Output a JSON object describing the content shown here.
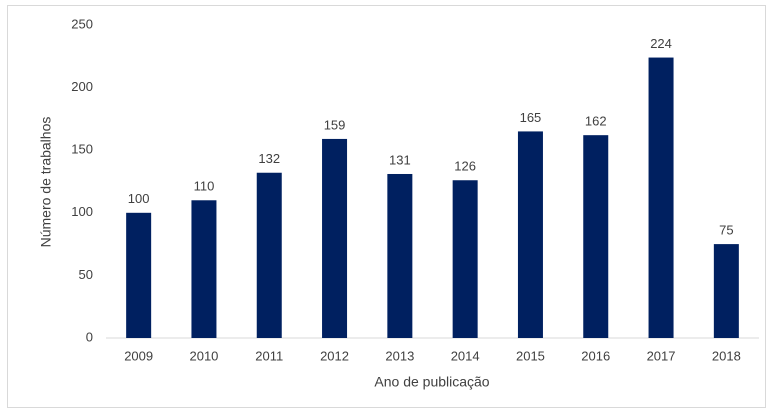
{
  "chart_data": {
    "type": "bar",
    "x_label": "Ano de publicação",
    "y_label": "Número de trabalhos",
    "categories": [
      "2009",
      "2010",
      "2011",
      "2012",
      "2013",
      "2014",
      "2015",
      "2016",
      "2017",
      "2018"
    ],
    "values": [
      100,
      110,
      132,
      159,
      131,
      126,
      165,
      162,
      224,
      75
    ],
    "color": "#002060",
    "ylim": [
      0,
      250
    ],
    "yticks": [
      0,
      50,
      100,
      150,
      200,
      250
    ],
    "grid": false
  }
}
